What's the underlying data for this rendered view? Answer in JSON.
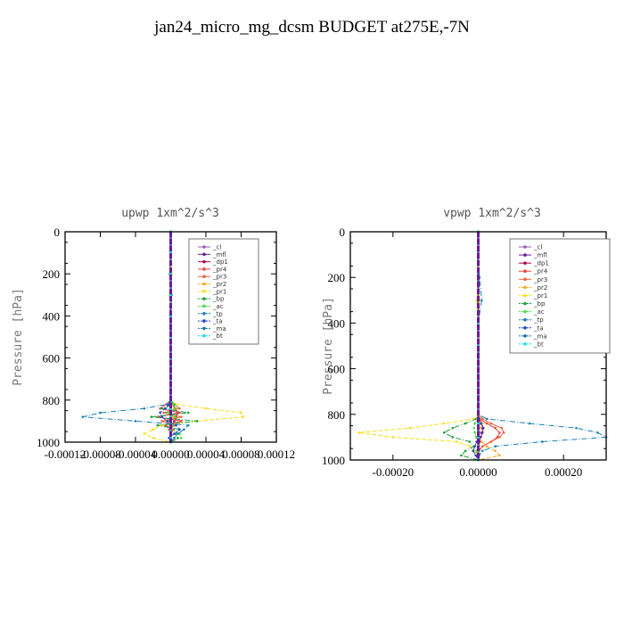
{
  "title": "jan24_micro_mg_dcsm  BUDGET at275E,-7N",
  "colors": {
    "_cl": "#9b59b6",
    "_mfl": "#6a1b9a",
    "_dp1": "#b00050",
    "_pr4": "#e8453c",
    "_pr3": "#f06040",
    "_pr2": "#f5a623",
    "_pr1": "#f5e020",
    "_bp": "#1e9e3a",
    "_ac": "#44dd44",
    "_tp": "#1a7fb5",
    "_ta": "#2244cc",
    "_ma": "#1a6fa0",
    "_bt": "#22dddd"
  },
  "chart_data": [
    {
      "type": "line",
      "title": "upwp   1xm^2/s^3",
      "ylabel": "Pressure [hPa]",
      "xlabel": "",
      "ylim": [
        1000,
        0
      ],
      "xlim": [
        -0.00012,
        0.00012
      ],
      "xticks": [
        "-0.00012",
        "-0.00008",
        "-0.00004",
        "0.00000",
        "0.00004",
        "0.00008",
        "0.00012"
      ],
      "yticks": [
        "0",
        "200",
        "400",
        "600",
        "800",
        "1000"
      ],
      "legend_position": "top-right",
      "legend": [
        "_cl",
        "_mfl",
        "_dp1",
        "_pr4",
        "_pr3",
        "_pr2",
        "_pr1",
        "_bp",
        "_ac",
        "_tp",
        "_ta",
        "_ma",
        "_bt"
      ],
      "pressure": [
        0,
        100,
        200,
        300,
        400,
        500,
        600,
        700,
        800,
        820,
        840,
        860,
        880,
        900,
        920,
        940,
        960,
        980,
        1000
      ],
      "series": [
        {
          "name": "_cl",
          "values": [
            0,
            0,
            0,
            0,
            0,
            0,
            0,
            0,
            0,
            0,
            0,
            0,
            0,
            0,
            0,
            0,
            0,
            0,
            0
          ]
        },
        {
          "name": "_mfl",
          "values": [
            0,
            0,
            0,
            0,
            0,
            0,
            0,
            0,
            0,
            0,
            0,
            0,
            0,
            0,
            0,
            0,
            0,
            0,
            0
          ]
        },
        {
          "name": "_dp1",
          "values": [
            0,
            0,
            0,
            0,
            0,
            0,
            0,
            0,
            0,
            2e-06,
            5e-06,
            8e-06,
            6e-06,
            4e-06,
            2e-06,
            1e-06,
            0,
            0,
            0
          ]
        },
        {
          "name": "_pr4",
          "values": [
            0,
            0,
            0,
            0,
            0,
            0,
            0,
            0,
            0,
            -5e-06,
            -1.2e-05,
            1e-05,
            -1.4e-05,
            1.2e-05,
            -6e-06,
            3e-06,
            0,
            0,
            0
          ]
        },
        {
          "name": "_pr3",
          "values": [
            0,
            0,
            0,
            0,
            0,
            0,
            0,
            0,
            0,
            4e-06,
            1e-05,
            -8e-06,
            1.2e-05,
            -1e-05,
            5e-06,
            -2e-06,
            0,
            0,
            0
          ]
        },
        {
          "name": "_pr2",
          "values": [
            0,
            0,
            0,
            1e-06,
            0,
            0,
            0,
            0,
            0,
            2e-06,
            4e-06,
            -3e-06,
            3e-06,
            -2e-06,
            1e-06,
            0,
            0,
            0,
            0
          ]
        },
        {
          "name": "_pr1",
          "values": [
            0,
            0,
            1e-06,
            -1e-06,
            0,
            0,
            0,
            0,
            0,
            6e-06,
            4e-05,
            8e-05,
            8.2e-05,
            3e-05,
            -1e-05,
            -2e-05,
            -3e-05,
            -2e-05,
            0
          ]
        },
        {
          "name": "_bp",
          "values": [
            0,
            0,
            0,
            0,
            0,
            0,
            0,
            0,
            0,
            4e-06,
            -1e-05,
            2e-05,
            -2.2e-05,
            3e-05,
            -1.5e-05,
            1e-05,
            5e-06,
            8e-06,
            0
          ]
        },
        {
          "name": "_ac",
          "values": [
            0,
            0,
            0,
            0,
            0,
            0,
            0,
            0,
            0,
            3e-06,
            6e-06,
            -4e-06,
            5e-06,
            -3e-06,
            2e-06,
            1e-06,
            1e-05,
            1.2e-05,
            0
          ]
        },
        {
          "name": "_tp",
          "values": [
            0,
            0,
            -1e-06,
            1e-06,
            0,
            0,
            0,
            0,
            0,
            -4e-06,
            -3e-05,
            -8e-05,
            -0.0001,
            -4e-05,
            2e-05,
            1.5e-05,
            8e-06,
            4e-06,
            0
          ]
        },
        {
          "name": "_ta",
          "values": [
            0,
            0,
            0,
            0,
            0,
            0,
            0,
            0,
            0,
            -2e-06,
            -6e-06,
            -1.2e-05,
            -1e-05,
            -4e-06,
            6e-06,
            1e-05,
            4e-06,
            -2e-06,
            0
          ]
        },
        {
          "name": "_ma",
          "values": [
            0,
            0,
            0,
            0,
            0,
            0,
            0,
            0,
            0,
            0,
            0,
            0,
            0,
            0,
            0,
            0,
            0,
            0,
            0
          ]
        },
        {
          "name": "_bt",
          "values": [
            0,
            0,
            0,
            0,
            0,
            0,
            0,
            0,
            0,
            0,
            0,
            0,
            0,
            0,
            0,
            0,
            0,
            0,
            0
          ]
        }
      ]
    },
    {
      "type": "line",
      "title": "vpwp   1xm^2/s^3",
      "ylabel": "Pressure [hPa]",
      "xlabel": "",
      "ylim": [
        1000,
        0
      ],
      "xlim": [
        -0.0003,
        0.0003
      ],
      "xticks": [
        "-0.00020",
        "0.00000",
        "0.00020"
      ],
      "xtick_values": [
        -0.0002,
        0,
        0.0002
      ],
      "yticks": [
        "0",
        "200",
        "400",
        "600",
        "800",
        "1000"
      ],
      "legend_position": "top-right",
      "legend": [
        "_cl",
        "_mfl",
        "_dp1",
        "_pr4",
        "_pr3",
        "_pr2",
        "_pr1",
        "_bp",
        "_ac",
        "_tp",
        "_ta",
        "_ma",
        "_bt"
      ],
      "pressure": [
        0,
        100,
        200,
        300,
        400,
        500,
        600,
        700,
        800,
        820,
        840,
        860,
        880,
        900,
        920,
        940,
        960,
        980,
        1000
      ],
      "series": [
        {
          "name": "_cl",
          "values": [
            0,
            0,
            0,
            0,
            0,
            0,
            0,
            0,
            0,
            0,
            0,
            0,
            0,
            0,
            0,
            0,
            0,
            0,
            0
          ]
        },
        {
          "name": "_mfl",
          "values": [
            0,
            0,
            0,
            0,
            0,
            0,
            0,
            0,
            0,
            0,
            0,
            0,
            0,
            0,
            0,
            0,
            0,
            0,
            0
          ]
        },
        {
          "name": "_dp1",
          "values": [
            0,
            0,
            0,
            0,
            0,
            0,
            0,
            0,
            0,
            3e-06,
            8e-06,
            1.2e-05,
            1e-05,
            6e-06,
            3e-06,
            1e-06,
            0,
            0,
            0
          ]
        },
        {
          "name": "_pr4",
          "values": [
            0,
            0,
            0,
            0,
            0,
            0,
            0,
            0,
            0,
            4e-06,
            2e-05,
            4e-05,
            5e-05,
            4.5e-05,
            3e-05,
            1e-05,
            0,
            0,
            0
          ]
        },
        {
          "name": "_pr3",
          "values": [
            0,
            0,
            0,
            0,
            0,
            0,
            0,
            0,
            0,
            1e-05,
            3e-05,
            5.5e-05,
            6e-05,
            5e-05,
            3e-05,
            1e-05,
            2e-06,
            0,
            0
          ]
        },
        {
          "name": "_pr2",
          "values": [
            0,
            0,
            0,
            2e-06,
            0,
            0,
            0,
            0,
            0,
            4e-06,
            1e-05,
            6e-06,
            4e-06,
            3e-06,
            8e-06,
            2e-05,
            4e-05,
            5e-05,
            0
          ]
        },
        {
          "name": "_pr1",
          "values": [
            0,
            0,
            2e-06,
            -4e-06,
            0,
            0,
            0,
            0,
            0,
            -1e-05,
            -8e-05,
            -0.00016,
            -0.00028,
            -0.0002,
            -5e-05,
            -2e-05,
            -1e-05,
            0,
            0
          ]
        },
        {
          "name": "_bp",
          "values": [
            0,
            0,
            0,
            0,
            0,
            0,
            0,
            0,
            0,
            -5e-06,
            -3e-05,
            -6e-05,
            -8e-05,
            -6e-05,
            -2e-05,
            -1e-05,
            -3e-05,
            -4e-05,
            0
          ]
        },
        {
          "name": "_ac",
          "values": [
            0,
            0,
            0,
            0,
            0,
            0,
            0,
            0,
            0,
            -3e-06,
            -8e-06,
            -1e-05,
            -8e-06,
            -5e-06,
            -2e-06,
            -1e-06,
            -4e-06,
            -4e-06,
            0
          ]
        },
        {
          "name": "_tp",
          "values": [
            0,
            0,
            3e-06,
            8e-06,
            0,
            0,
            0,
            0,
            0,
            2e-05,
            0.00012,
            0.00023,
            0.00028,
            0.0003,
            0.00015,
            4e-05,
            1e-05,
            2e-06,
            0
          ]
        },
        {
          "name": "_ta",
          "values": [
            0,
            0,
            0,
            0,
            0,
            0,
            0,
            0,
            0,
            2e-06,
            6e-06,
            1e-05,
            8e-06,
            4e-06,
            -4e-06,
            -8e-06,
            -1.2e-05,
            -6e-06,
            0
          ]
        },
        {
          "name": "_ma",
          "values": [
            0,
            0,
            0,
            0,
            0,
            0,
            0,
            0,
            0,
            0,
            0,
            0,
            0,
            0,
            0,
            0,
            0,
            0,
            0
          ]
        },
        {
          "name": "_bt",
          "values": [
            0,
            0,
            0,
            0,
            0,
            0,
            0,
            0,
            0,
            0,
            0,
            0,
            0,
            0,
            0,
            0,
            0,
            0,
            0
          ]
        }
      ]
    }
  ]
}
